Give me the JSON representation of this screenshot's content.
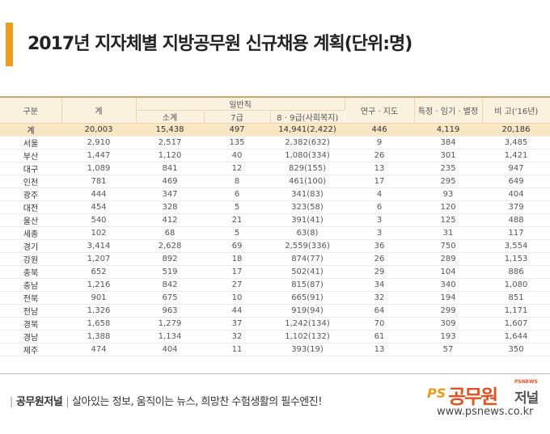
{
  "title": "2017년 지자체별 지방공무원 신규채용 계획(단위:명)",
  "table": {
    "headers": {
      "region": "구분",
      "total": "계",
      "general": "일반직",
      "subtotal": "소계",
      "grade7": "7급",
      "grade89": "8 · 9급(사회복지)",
      "research": "연구 · 지도",
      "special": "특정 · 임기 · 별정",
      "compare": "비 고('16년)"
    },
    "rows": [
      [
        "계",
        "20,003",
        "15,438",
        "497",
        "14,941(2,422)",
        "446",
        "4,119",
        "20,186"
      ],
      [
        "서울",
        "2,910",
        "2,517",
        "135",
        "2,382(632)",
        "9",
        "384",
        "3,485"
      ],
      [
        "부산",
        "1,447",
        "1,120",
        "40",
        "1,080(334)",
        "26",
        "301",
        "1,421"
      ],
      [
        "대구",
        "1,089",
        "841",
        "12",
        "829(155)",
        "13",
        "235",
        "947"
      ],
      [
        "인천",
        "781",
        "469",
        "8",
        "461(100)",
        "17",
        "295",
        "649"
      ],
      [
        "광주",
        "444",
        "347",
        "6",
        "341(83)",
        "4",
        "93",
        "404"
      ],
      [
        "대전",
        "454",
        "328",
        "5",
        "323(58)",
        "6",
        "120",
        "379"
      ],
      [
        "울산",
        "540",
        "412",
        "21",
        "391(41)",
        "3",
        "125",
        "488"
      ],
      [
        "세종",
        "102",
        "68",
        "5",
        "63(8)",
        "3",
        "31",
        "117"
      ],
      [
        "경기",
        "3,414",
        "2,628",
        "69",
        "2,559(336)",
        "36",
        "750",
        "3,554"
      ],
      [
        "강원",
        "1,207",
        "892",
        "18",
        "874(77)",
        "26",
        "289",
        "1,153"
      ],
      [
        "충북",
        "652",
        "519",
        "17",
        "502(41)",
        "29",
        "104",
        "886"
      ],
      [
        "충남",
        "1,216",
        "842",
        "27",
        "815(87)",
        "34",
        "340",
        "1,080"
      ],
      [
        "전북",
        "901",
        "675",
        "10",
        "665(91)",
        "32",
        "194",
        "851"
      ],
      [
        "전남",
        "1,326",
        "963",
        "44",
        "919(94)",
        "64",
        "299",
        "1,171"
      ],
      [
        "경북",
        "1,658",
        "1,279",
        "37",
        "1,242(134)",
        "70",
        "309",
        "1,607"
      ],
      [
        "경남",
        "1,388",
        "1,134",
        "32",
        "1,102(132)",
        "61",
        "193",
        "1,644"
      ],
      [
        "제주",
        "474",
        "404",
        "11",
        "393(19)",
        "13",
        "57",
        "350"
      ]
    ]
  },
  "footer": {
    "brand": "공무원저널",
    "slogan": "살아있는 정보, 움직이는 뉴스, 희망찬 수험생활의 필수엔진!",
    "logo_ps": "PS",
    "logo_main": "공무원",
    "logo_sub": "저널",
    "logo_small": "PSNEWS",
    "url": "www.psnews.co.kr"
  },
  "colors": {
    "accent": "#f29a1c",
    "header_bg": "#fbf1df",
    "total_row_bg": "#fbe6c4",
    "logo_red": "#e8501e"
  }
}
